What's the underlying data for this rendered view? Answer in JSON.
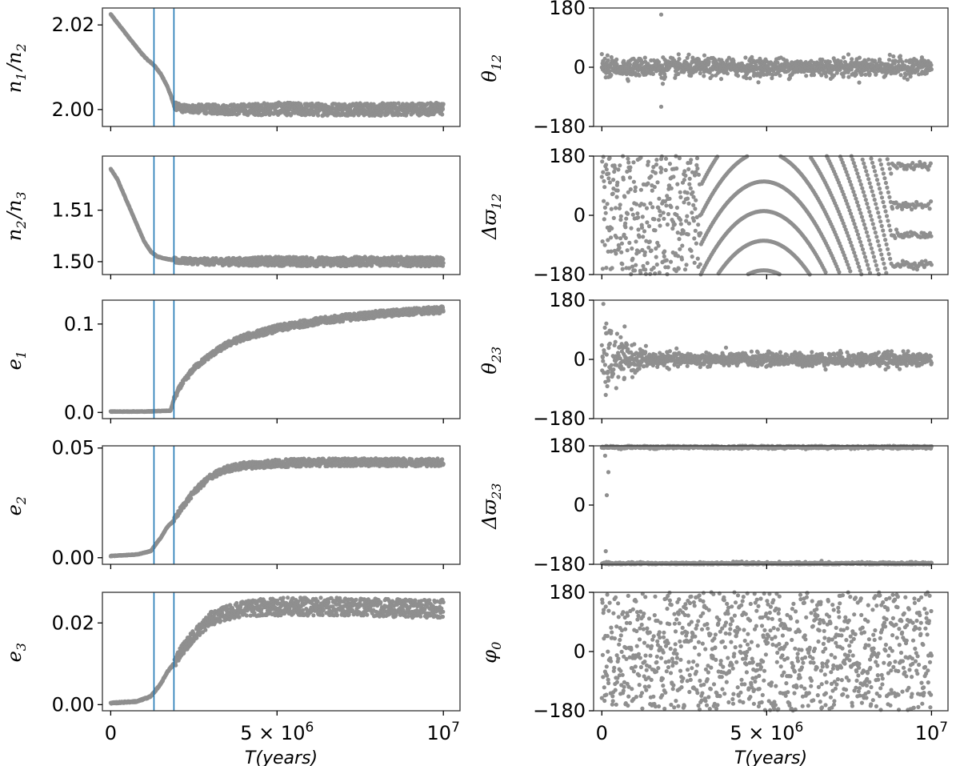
{
  "chart_data": [
    {
      "id": "n1n2",
      "type": "scatter",
      "ylabel": "n_1/n_2",
      "ylabel_parts": [
        [
          "n",
          "1"
        ],
        [
          "/",
          ""
        ],
        [
          "n",
          "2"
        ]
      ],
      "ylim": [
        1.996,
        2.024
      ],
      "yticks": [
        {
          "v": 2.0,
          "label": "2.00"
        },
        {
          "v": 2.02,
          "label": "2.02"
        }
      ],
      "xlim": [
        -250000,
        10500000
      ],
      "vlines": [
        1300000,
        1900000
      ],
      "series": [
        {
          "color": "#8f8f8f",
          "points": [
            [
              0,
              2.0225
            ],
            [
              300000,
              2.0195
            ],
            [
              600000,
              2.0165
            ],
            [
              900000,
              2.0135
            ],
            [
              1100000,
              2.0118
            ],
            [
              1300000,
              2.0105
            ],
            [
              1500000,
              2.0085
            ],
            [
              1700000,
              2.0055
            ],
            [
              1800000,
              2.0035
            ],
            [
              1900000,
              2.001
            ],
            [
              2100000,
              2.0003
            ],
            [
              3000000,
              2.0001
            ],
            [
              4000000,
              2.0
            ],
            [
              5000000,
              2.0002
            ],
            [
              6000000,
              2.0
            ],
            [
              7000000,
              2.0001
            ],
            [
              8000000,
              2.0
            ],
            [
              9000000,
              2.0001
            ],
            [
              10000000,
              2.0002
            ]
          ]
        }
      ],
      "spread_after": 0.0015
    },
    {
      "id": "n2n3",
      "type": "scatter",
      "ylabel": "n_2/n_3",
      "ylabel_parts": [
        [
          "n",
          "2"
        ],
        [
          "/",
          ""
        ],
        [
          "n",
          "3"
        ]
      ],
      "ylim": [
        1.4975,
        1.5205
      ],
      "yticks": [
        {
          "v": 1.5,
          "label": "1.50"
        },
        {
          "v": 1.51,
          "label": "1.51"
        }
      ],
      "xlim": [
        -250000,
        10500000
      ],
      "vlines": [
        1300000,
        1900000
      ],
      "series": [
        {
          "color": "#8f8f8f",
          "points": [
            [
              0,
              1.518
            ],
            [
              200000,
              1.516
            ],
            [
              400000,
              1.513
            ],
            [
              600000,
              1.51
            ],
            [
              800000,
              1.507
            ],
            [
              1000000,
              1.504
            ],
            [
              1200000,
              1.502
            ],
            [
              1400000,
              1.501
            ],
            [
              1700000,
              1.5005
            ],
            [
              2000000,
              1.5002
            ],
            [
              3000000,
              1.5
            ],
            [
              4000000,
              1.5
            ],
            [
              5000000,
              1.5001
            ],
            [
              6000000,
              1.5
            ],
            [
              7000000,
              1.5
            ],
            [
              8000000,
              1.5001
            ],
            [
              9000000,
              1.5
            ],
            [
              10000000,
              1.5
            ]
          ]
        }
      ],
      "spread_after": 0.0009
    },
    {
      "id": "e1",
      "type": "scatter",
      "ylabel": "e_1",
      "ylabel_parts": [
        [
          "e",
          "1"
        ]
      ],
      "ylim": [
        -0.007,
        0.127
      ],
      "yticks": [
        {
          "v": 0.0,
          "label": "0.0"
        },
        {
          "v": 0.1,
          "label": "0.1"
        }
      ],
      "xlim": [
        -250000,
        10500000
      ],
      "vlines": [
        1300000,
        1900000
      ],
      "series": [
        {
          "color": "#8f8f8f",
          "points": [
            [
              0,
              0.001
            ],
            [
              1000000,
              0.001
            ],
            [
              1800000,
              0.002
            ],
            [
              1900000,
              0.015
            ],
            [
              2100000,
              0.03
            ],
            [
              2500000,
              0.05
            ],
            [
              3000000,
              0.065
            ],
            [
              3500000,
              0.077
            ],
            [
              4000000,
              0.085
            ],
            [
              5000000,
              0.095
            ],
            [
              6000000,
              0.102
            ],
            [
              7000000,
              0.107
            ],
            [
              8000000,
              0.111
            ],
            [
              9000000,
              0.114
            ],
            [
              10000000,
              0.116
            ]
          ]
        }
      ],
      "spread_after": 0.004
    },
    {
      "id": "e2",
      "type": "scatter",
      "ylabel": "e_2",
      "ylabel_parts": [
        [
          "e",
          "2"
        ]
      ],
      "ylim": [
        -0.003,
        0.051
      ],
      "yticks": [
        {
          "v": 0.0,
          "label": "0.00"
        },
        {
          "v": 0.05,
          "label": "0.05"
        }
      ],
      "xlim": [
        -250000,
        10500000
      ],
      "vlines": [
        1300000,
        1900000
      ],
      "series": [
        {
          "color": "#8f8f8f",
          "points": [
            [
              0,
              0.0008
            ],
            [
              800000,
              0.0015
            ],
            [
              1200000,
              0.003
            ],
            [
              1500000,
              0.009
            ],
            [
              1700000,
              0.014
            ],
            [
              1900000,
              0.017
            ],
            [
              2100000,
              0.022
            ],
            [
              2500000,
              0.03
            ],
            [
              3000000,
              0.037
            ],
            [
              3500000,
              0.0405
            ],
            [
              4000000,
              0.042
            ],
            [
              5000000,
              0.043
            ],
            [
              6000000,
              0.0435
            ],
            [
              7000000,
              0.0435
            ],
            [
              8000000,
              0.0435
            ],
            [
              9000000,
              0.0435
            ],
            [
              10000000,
              0.0435
            ]
          ]
        }
      ],
      "spread_after": 0.0018
    },
    {
      "id": "e3",
      "type": "scatter",
      "ylabel": "e_3",
      "ylabel_parts": [
        [
          "e",
          "3"
        ]
      ],
      "ylim": [
        -0.0015,
        0.0275
      ],
      "yticks": [
        {
          "v": 0.0,
          "label": "0.00"
        },
        {
          "v": 0.02,
          "label": "0.02"
        }
      ],
      "xlim": [
        -250000,
        10500000
      ],
      "vlines": [
        1300000,
        1900000
      ],
      "series": [
        {
          "color": "#8f8f8f",
          "points": [
            [
              0,
              0.0004
            ],
            [
              800000,
              0.0008
            ],
            [
              1200000,
              0.002
            ],
            [
              1500000,
              0.005
            ],
            [
              1700000,
              0.008
            ],
            [
              1900000,
              0.01
            ],
            [
              2100000,
              0.013
            ],
            [
              2500000,
              0.017
            ],
            [
              3000000,
              0.021
            ],
            [
              3500000,
              0.0225
            ],
            [
              4000000,
              0.0235
            ],
            [
              5000000,
              0.024
            ],
            [
              6000000,
              0.024
            ],
            [
              7000000,
              0.024
            ],
            [
              8000000,
              0.0238
            ],
            [
              9000000,
              0.0235
            ],
            [
              10000000,
              0.0235
            ]
          ]
        }
      ],
      "spread_after": 0.0022,
      "xticks": [
        {
          "v": 0,
          "label": "0"
        },
        {
          "v": 5000000,
          "label": "5 × 10^6"
        },
        {
          "v": 10000000,
          "label": "10^7"
        }
      ],
      "xlabel": "T(years)"
    },
    {
      "id": "theta12",
      "type": "scatter",
      "ylabel": "θ_12",
      "ylabel_parts": [
        [
          "θ",
          "12"
        ]
      ],
      "ylim": [
        -180,
        180
      ],
      "yticks": [
        {
          "v": -180,
          "label": "−180"
        },
        {
          "v": 0,
          "label": "0"
        },
        {
          "v": 180,
          "label": "180"
        }
      ],
      "xlim": [
        -250000,
        10500000
      ],
      "pattern": "libration",
      "amp": 25,
      "spikes": [
        [
          0,
          40
        ],
        [
          200000,
          -30
        ],
        [
          1800000,
          160
        ],
        [
          1800000,
          -120
        ],
        [
          1850000,
          -50
        ]
      ]
    },
    {
      "id": "dvarpi12",
      "type": "scatter",
      "ylabel": "Δϖ_12",
      "ylabel_parts": [
        [
          "Δϖ",
          "12"
        ]
      ],
      "ylim": [
        -180,
        180
      ],
      "yticks": [
        {
          "v": -180,
          "label": "−180"
        },
        {
          "v": 0,
          "label": "0"
        },
        {
          "v": 180,
          "label": "180"
        }
      ],
      "xlim": [
        -250000,
        10500000
      ],
      "pattern": "circulate"
    },
    {
      "id": "theta23",
      "type": "scatter",
      "ylabel": "θ_23",
      "ylabel_parts": [
        [
          "θ",
          "23"
        ]
      ],
      "ylim": [
        -180,
        180
      ],
      "yticks": [
        {
          "v": -180,
          "label": "−180"
        },
        {
          "v": 0,
          "label": "0"
        },
        {
          "v": 180,
          "label": "180"
        }
      ],
      "xlim": [
        -250000,
        10500000
      ],
      "pattern": "damped",
      "amp": 20
    },
    {
      "id": "dvarpi23",
      "type": "scatter",
      "ylabel": "Δϖ_23",
      "ylabel_parts": [
        [
          "Δϖ",
          "23"
        ]
      ],
      "ylim": [
        -180,
        180
      ],
      "yticks": [
        {
          "v": -180,
          "label": "−180"
        },
        {
          "v": 0,
          "label": "0"
        },
        {
          "v": 180,
          "label": "180"
        }
      ],
      "xlim": [
        -250000,
        10500000
      ],
      "pattern": "bistable"
    },
    {
      "id": "phi0",
      "type": "scatter",
      "ylabel": "φ_0",
      "ylabel_parts": [
        [
          "φ",
          "0"
        ]
      ],
      "ylim": [
        -180,
        180
      ],
      "yticks": [
        {
          "v": -180,
          "label": "−180"
        },
        {
          "v": 0,
          "label": "0"
        },
        {
          "v": 180,
          "label": "180"
        }
      ],
      "xlim": [
        -250000,
        10500000
      ],
      "pattern": "random",
      "xticks": [
        {
          "v": 0,
          "label": "0"
        },
        {
          "v": 5000000,
          "label": "5 × 10^6"
        },
        {
          "v": 10000000,
          "label": "10^7"
        }
      ],
      "xlabel": "T(years)"
    }
  ]
}
